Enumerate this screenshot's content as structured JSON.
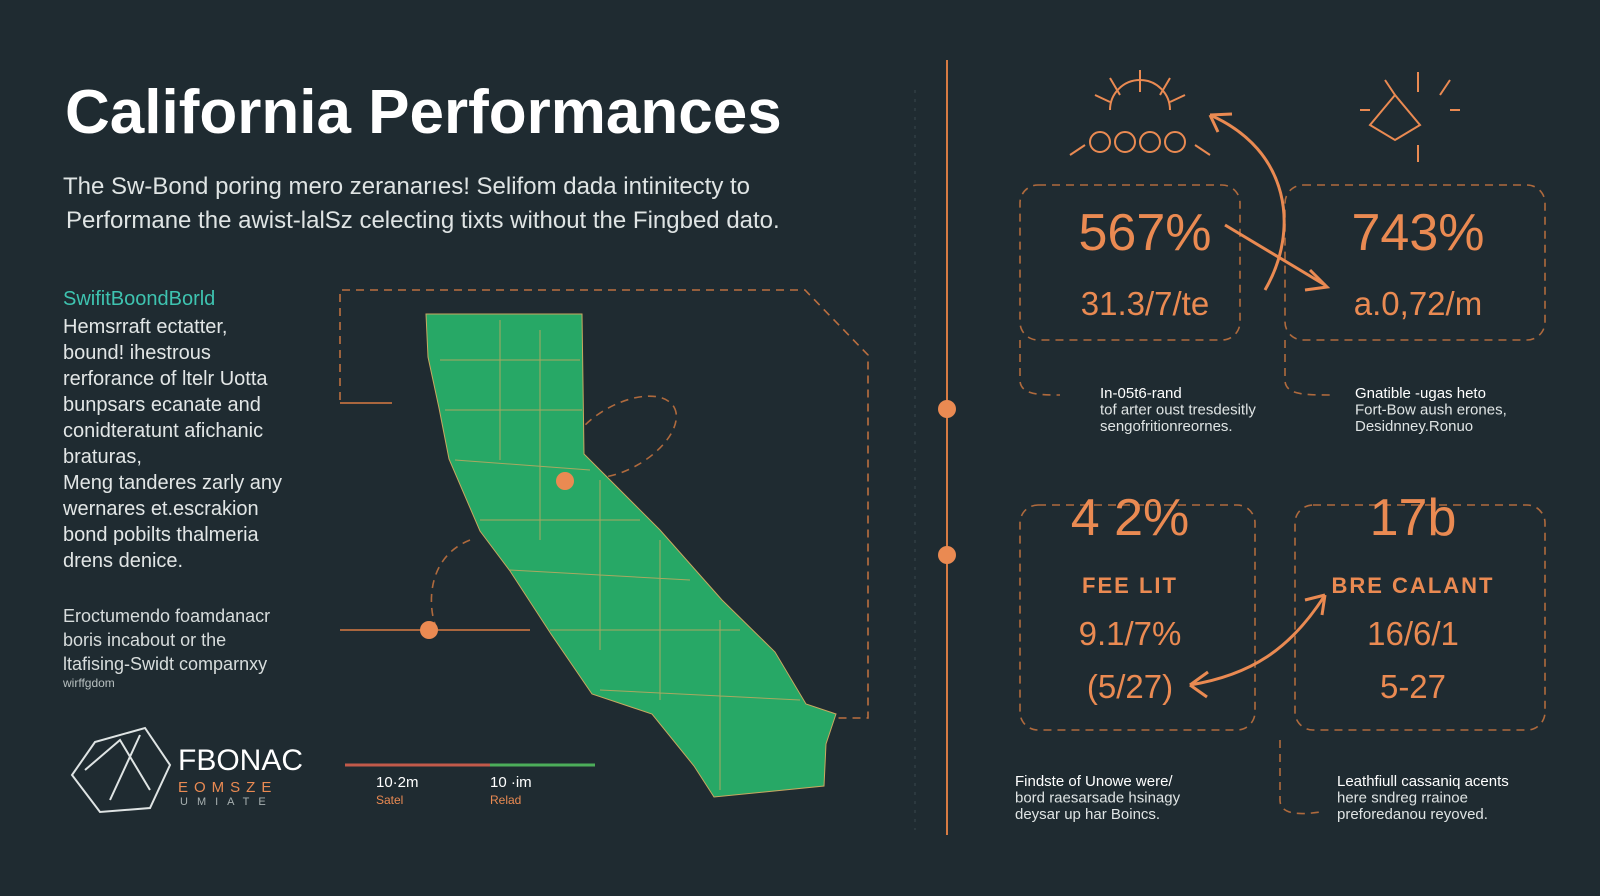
{
  "header": {
    "title": "California Performances",
    "subtitle": [
      "The Sw-Bond poring mero zeranarıes! Selifom dada intinitecty to",
      "Performane the awist-lalSz celecting tixts without the Fingbed dato."
    ]
  },
  "sidebar": {
    "heading": "SwifitBoondBorld",
    "paragraph": [
      "Hemsrraft ectatter,",
      "bound! ihestrous",
      "rerforance of ltelr Uotta",
      "bunpsars ecanate and",
      "conidteratunt afichanic",
      "braturas,",
      "Meng tanderes zarly any",
      "wernares et.escrakion",
      "bond pobilts thalmeria",
      "drens denice."
    ],
    "note": [
      "Eroctumendo foamdanacr",
      "boris incabout or the",
      "ltafising-Swidt comparnxy"
    ],
    "note_small": "wirffgdom"
  },
  "logo": {
    "name": "FBONAC",
    "tagline": "EOMSZE",
    "subtag": "UMIATE"
  },
  "legend": [
    {
      "value": "10·2m",
      "label": "Satel"
    },
    {
      "value": "10 ·im",
      "label": "Relad"
    }
  ],
  "stats": [
    {
      "value": "567%",
      "sub": "31.3/7/te",
      "caption": [
        "In-05t6-rand",
        "tof arter oust tresdesitly",
        "sengofritionreornes."
      ]
    },
    {
      "value": "743%",
      "sub": "a.0,72/m",
      "caption": [
        "Gnatible -ugas heto",
        "Fort-Bow aush erones,",
        "Desidnney.Ronuo"
      ]
    },
    {
      "value": "4 2%",
      "heading": "FEE LIT",
      "sub": "9.1/7%",
      "extra": "(5/27)",
      "caption": [
        "Findste of Unowe were/",
        "bord raesarsade hsinagy",
        "deysar up har Boincs."
      ]
    },
    {
      "value": "17b",
      "heading": "BRE CALANT",
      "sub": "16/6/1",
      "extra": "5-27",
      "caption": [
        "Leathfiull cassaniq acents",
        "here sndreg rrainoe",
        "preforedanou reyoved."
      ]
    }
  ]
}
